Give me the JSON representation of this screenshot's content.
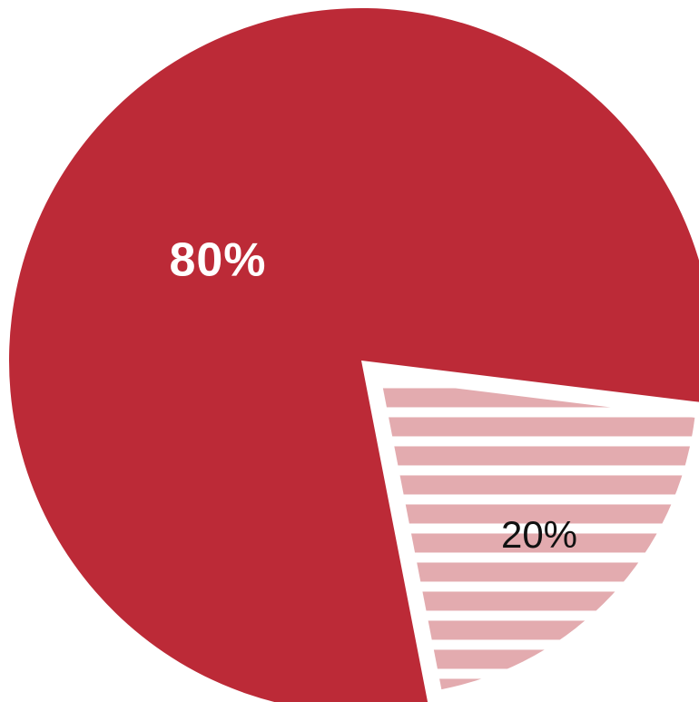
{
  "chart_data": {
    "type": "pie",
    "title": "",
    "slices": [
      {
        "value": 80,
        "label": "80%",
        "color": "#BC2A37",
        "label_color": "#ffffff",
        "pattern": "solid"
      },
      {
        "value": 20,
        "label": "20%",
        "color": "#E3ABAF",
        "label_color": "#111111",
        "pattern": "horizontal-stripes",
        "exploded": true
      }
    ],
    "legend": "none"
  }
}
